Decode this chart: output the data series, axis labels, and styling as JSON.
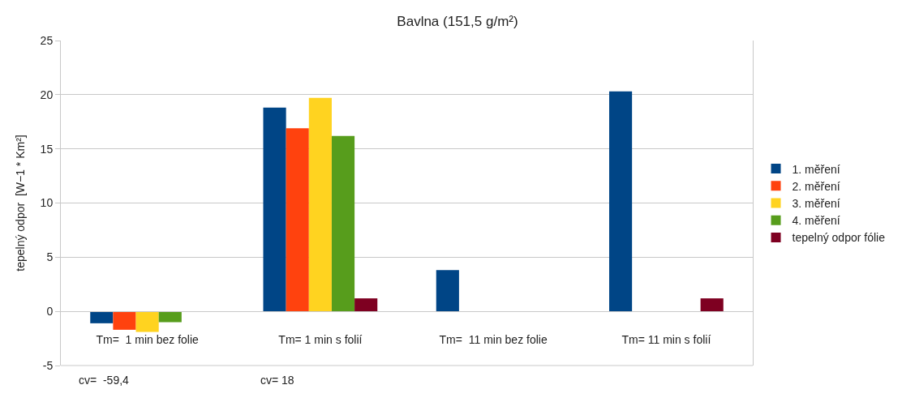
{
  "chart_data": {
    "type": "bar",
    "title": "Bavlna (151,5 g/m²)",
    "ylabel": "tepelný odpor  [W−1 * Km²]",
    "categories": [
      "Tm=  1 min bez folie",
      "Tm= 1 min s folií",
      "Tm=  11 min bez folie",
      "Tm= 11 min s folií"
    ],
    "series": [
      {
        "name": "1. měření",
        "color": "#004586",
        "values": [
          -1.1,
          18.8,
          3.8,
          20.3
        ]
      },
      {
        "name": "2. měření",
        "color": "#ff420e",
        "values": [
          -1.7,
          16.9,
          null,
          null
        ]
      },
      {
        "name": "3. měření",
        "color": "#ffd320",
        "values": [
          -1.9,
          19.7,
          null,
          null
        ]
      },
      {
        "name": "4. měření",
        "color": "#579d1c",
        "values": [
          -1.0,
          16.2,
          null,
          null
        ]
      },
      {
        "name": "tepelný odpor fólie",
        "color": "#7e0021",
        "values": [
          null,
          1.2,
          null,
          1.2
        ]
      }
    ],
    "ylim": [
      -5,
      25
    ],
    "yticks": [
      -5,
      0,
      5,
      10,
      15,
      20,
      25
    ],
    "grid": "y",
    "legend": "right",
    "annotations": [
      "cv=  -59,4",
      "cv= 18"
    ]
  }
}
